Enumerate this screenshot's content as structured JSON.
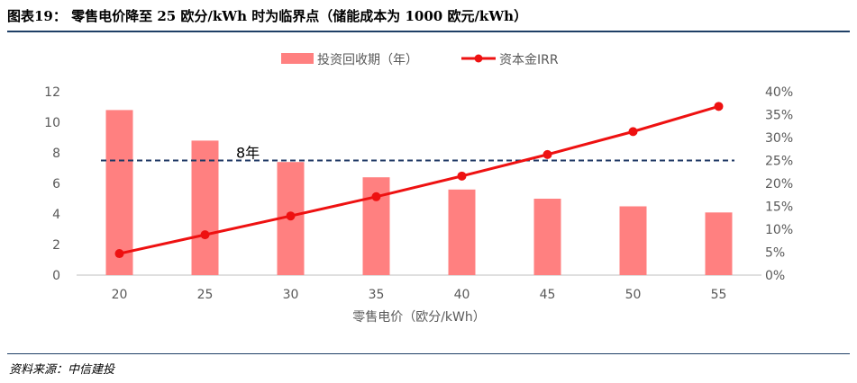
{
  "figure": {
    "title": "图表19： 零售电价降至 25 欧分/kWh 时为临界点（储能成本为 1000 欧元/kWh）",
    "source": "资料来源：中信建投"
  },
  "colors": {
    "bar": "#ff8080",
    "line": "#ee1111",
    "threshold": "#1f3864",
    "rule": "#1f3f66",
    "axis": "#bfbfbf"
  },
  "chart_data": {
    "type": "bar",
    "title": "",
    "categories": [
      "20",
      "25",
      "30",
      "35",
      "40",
      "45",
      "50",
      "55"
    ],
    "xlabel": "零售电价（欧分/kWh）",
    "ylabel": "",
    "ylim": [
      0,
      12
    ],
    "yticks": [
      "0",
      "2",
      "4",
      "6",
      "8",
      "10",
      "12"
    ],
    "y2lim": [
      0,
      40
    ],
    "y2ticks": [
      "0%",
      "5%",
      "10%",
      "15%",
      "20%",
      "25%",
      "30%",
      "35%",
      "40%"
    ],
    "legend_position": "top",
    "series": [
      {
        "name": "投资回收期（年）",
        "kind": "bar",
        "axis": "left",
        "values": [
          10.8,
          8.8,
          7.4,
          6.4,
          5.6,
          5.0,
          4.5,
          4.1
        ]
      },
      {
        "name": "资本金IRR",
        "kind": "line",
        "axis": "right",
        "unit": "%",
        "values": [
          4.7,
          8.8,
          12.9,
          17.1,
          21.6,
          26.3,
          31.3,
          36.8
        ]
      }
    ],
    "reference_line": {
      "value": 7.5,
      "axis": "left",
      "label": "8年"
    }
  }
}
